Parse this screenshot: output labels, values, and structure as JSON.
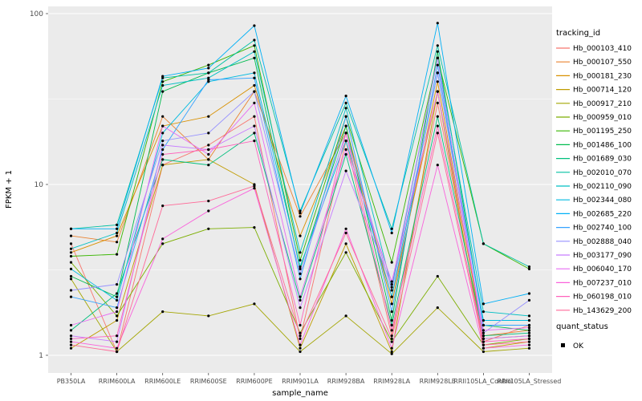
{
  "chart_data": {
    "type": "line",
    "title": "",
    "xlabel": "sample_name",
    "ylabel": "FPKM + 1",
    "y_scale": "log10",
    "y_ticks": [
      1,
      10,
      100
    ],
    "y_tick_labels": [
      "1",
      "10",
      "100"
    ],
    "ylim": [
      0.95,
      110
    ],
    "grid": true,
    "panel_bg": "#EBEBEB",
    "grid_color": "#FFFFFF",
    "point_color": "#000000",
    "legend_position": "right",
    "legend_title": "tracking_id",
    "quant_legend_title": "quant_status",
    "quant_items": [
      "OK"
    ],
    "categories": [
      "PB350LA",
      "RRIM600LA",
      "RRIM600LE",
      "RRIM600SE",
      "RRIM600PE",
      "RRIM901LA",
      "RRIM928BA",
      "RRIM928LA",
      "RRIM928LE",
      "RRII105LA_Control",
      "RRII105LA_Stressed"
    ],
    "series": [
      {
        "name": "Hb_000103_410",
        "color": "#F8766D",
        "values": [
          4.5,
          1.05,
          13,
          17,
          25,
          1.25,
          18,
          1.3,
          30,
          1.2,
          1.5
        ]
      },
      {
        "name": "Hb_000107_550",
        "color": "#EA8331",
        "values": [
          5.0,
          4.6,
          25,
          14,
          35,
          6.5,
          20,
          2.2,
          35,
          1.3,
          1.4
        ]
      },
      {
        "name": "Hb_000181_230",
        "color": "#D89000",
        "values": [
          4.0,
          5.0,
          22,
          25,
          38,
          5.0,
          22,
          2.0,
          40,
          1.25,
          1.3
        ]
      },
      {
        "name": "Hb_000714_120",
        "color": "#C09B00",
        "values": [
          1.1,
          1.6,
          13,
          14,
          10,
          1.1,
          4.5,
          1.05,
          35,
          1.1,
          1.2
        ]
      },
      {
        "name": "Hb_000917_210",
        "color": "#A3A500",
        "values": [
          2.8,
          1.05,
          1.8,
          1.7,
          2.0,
          1.05,
          1.7,
          1.02,
          1.9,
          1.05,
          1.1
        ]
      },
      {
        "name": "Hb_000959_010",
        "color": "#7CAE00",
        "values": [
          3.5,
          1.7,
          4.5,
          5.5,
          5.6,
          1.35,
          4.0,
          1.2,
          2.9,
          1.15,
          1.25
        ]
      },
      {
        "name": "Hb_001195_250",
        "color": "#39B600",
        "values": [
          3.8,
          3.9,
          40,
          50,
          65,
          3.6,
          25,
          3.5,
          55,
          4.5,
          3.2
        ]
      },
      {
        "name": "Hb_001486_100",
        "color": "#00BB4E",
        "values": [
          2.9,
          2.2,
          35,
          45,
          55,
          3.2,
          22,
          1.6,
          60,
          1.5,
          1.4
        ]
      },
      {
        "name": "Hb_001689_030",
        "color": "#00BF7D",
        "values": [
          1.4,
          2.3,
          14,
          13,
          20,
          2.1,
          15,
          1.5,
          25,
          1.3,
          1.35
        ]
      },
      {
        "name": "Hb_002010_070",
        "color": "#00C1A3",
        "values": [
          5.5,
          5.8,
          42,
          45,
          70,
          7.0,
          30,
          5.5,
          65,
          4.5,
          3.3
        ]
      },
      {
        "name": "Hb_002110_090",
        "color": "#00BFC4",
        "values": [
          4.2,
          5.2,
          38,
          42,
          60,
          4.0,
          28,
          2.5,
          55,
          1.8,
          1.7
        ]
      },
      {
        "name": "Hb_002344_080",
        "color": "#00BAE0",
        "values": [
          3.2,
          2.1,
          20,
          40,
          45,
          3.3,
          18,
          2.2,
          45,
          1.6,
          1.6
        ]
      },
      {
        "name": "Hb_002685_220",
        "color": "#00B0F6",
        "values": [
          5.5,
          5.5,
          43,
          48,
          85,
          6.8,
          33,
          5.2,
          88,
          2.0,
          2.3
        ]
      },
      {
        "name": "Hb_002740_100",
        "color": "#35A2FF",
        "values": [
          2.2,
          1.9,
          16,
          41,
          42,
          2.8,
          25,
          1.8,
          50,
          1.5,
          1.5
        ]
      },
      {
        "name": "Hb_002888_040",
        "color": "#9590FF",
        "values": [
          2.4,
          2.6,
          18,
          20,
          35,
          3.0,
          20,
          2.4,
          45,
          1.35,
          2.1
        ]
      },
      {
        "name": "Hb_003177_090",
        "color": "#C77CFF",
        "values": [
          1.3,
          1.2,
          17,
          16,
          22,
          1.9,
          12,
          2.6,
          55,
          1.25,
          1.3
        ]
      },
      {
        "name": "Hb_006040_170",
        "color": "#E76BF3",
        "values": [
          1.5,
          1.8,
          22,
          15,
          30,
          2.2,
          16,
          2.7,
          35,
          1.4,
          1.45
        ]
      },
      {
        "name": "Hb_007237_010",
        "color": "#FA62DB",
        "values": [
          1.2,
          1.1,
          4.8,
          7.0,
          9.5,
          1.15,
          5.5,
          1.1,
          13,
          1.1,
          1.15
        ]
      },
      {
        "name": "Hb_060198_010",
        "color": "#FF62BC",
        "values": [
          1.25,
          1.3,
          15,
          16,
          18,
          1.5,
          20,
          1.4,
          22,
          1.2,
          1.25
        ]
      },
      {
        "name": "Hb_143629_200",
        "color": "#FF6A98",
        "values": [
          1.15,
          1.05,
          7.5,
          8.0,
          9.8,
          1.3,
          5.2,
          1.25,
          20,
          1.15,
          1.2
        ]
      }
    ]
  }
}
